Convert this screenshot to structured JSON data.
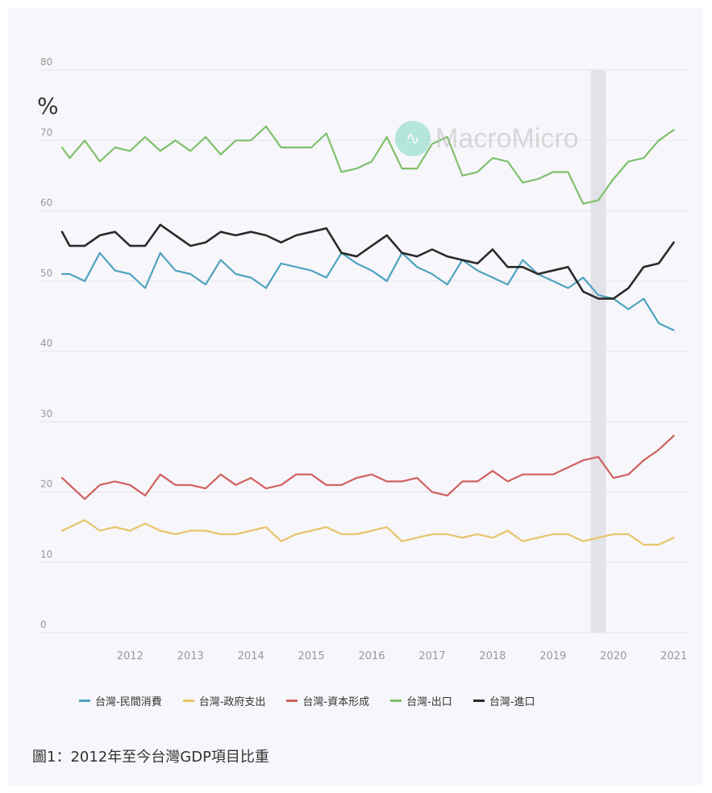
{
  "unit": "%",
  "watermark": "MacroMicro",
  "caption": "圖1：2012年至今台灣GDP項目比重",
  "chart_data": {
    "type": "line",
    "ylim": [
      0,
      80
    ],
    "yticks": [
      0,
      10,
      20,
      30,
      40,
      50,
      60,
      70,
      80
    ],
    "xlim": [
      2011.375,
      2021.625
    ],
    "xticks": [
      "2012",
      "2013",
      "2014",
      "2015",
      "2016",
      "2017",
      "2018",
      "2019",
      "2020",
      "2021"
    ],
    "shaded_period": [
      2020.125,
      2020.375
    ],
    "grid": true,
    "legend_position": "bottom",
    "series": [
      {
        "name": "台灣-民間消費",
        "color": "#4ea3bf",
        "x": [
          2011.375,
          2011.5,
          2011.75,
          2012.0,
          2012.25,
          2012.5,
          2012.75,
          2013.0,
          2013.25,
          2013.5,
          2013.75,
          2014.0,
          2014.25,
          2014.5,
          2014.75,
          2015.0,
          2015.25,
          2015.5,
          2015.75,
          2016.0,
          2016.25,
          2016.5,
          2016.75,
          2017.0,
          2017.25,
          2017.5,
          2017.75,
          2018.0,
          2018.25,
          2018.5,
          2018.75,
          2019.0,
          2019.25,
          2019.5,
          2019.75,
          2020.0,
          2020.25,
          2020.5,
          2020.75,
          2021.0,
          2021.25,
          2021.5
        ],
        "y": [
          51,
          51,
          50,
          54,
          51.5,
          51,
          49,
          54,
          51.5,
          51,
          49.5,
          53,
          51,
          50.5,
          49,
          52.5,
          52,
          51.5,
          50.5,
          54,
          52.5,
          51.5,
          50,
          54,
          52,
          51,
          49.5,
          53,
          51.5,
          50.5,
          49.5,
          53,
          51,
          50,
          49,
          50.5,
          48,
          47.5,
          46,
          47.5,
          44,
          43
        ]
      },
      {
        "name": "台灣-政府支出",
        "color": "#e8c46a",
        "x": [
          2011.375,
          2011.5,
          2011.75,
          2012.0,
          2012.25,
          2012.5,
          2012.75,
          2013.0,
          2013.25,
          2013.5,
          2013.75,
          2014.0,
          2014.25,
          2014.5,
          2014.75,
          2015.0,
          2015.25,
          2015.5,
          2015.75,
          2016.0,
          2016.25,
          2016.5,
          2016.75,
          2017.0,
          2017.25,
          2017.5,
          2017.75,
          2018.0,
          2018.25,
          2018.5,
          2018.75,
          2019.0,
          2019.25,
          2019.5,
          2019.75,
          2020.0,
          2020.25,
          2020.5,
          2020.75,
          2021.0,
          2021.25,
          2021.5
        ],
        "y": [
          14.5,
          15,
          16,
          14.5,
          15,
          14.5,
          15.5,
          14.5,
          14,
          14.5,
          14.5,
          14,
          14,
          14.5,
          15,
          13,
          14,
          14.5,
          15,
          14,
          14,
          14.5,
          15,
          13,
          13.5,
          14,
          14,
          13.5,
          14,
          13.5,
          14.5,
          13,
          13.5,
          14,
          14,
          13,
          13.5,
          14,
          14,
          12.5,
          12.5,
          13.5
        ]
      },
      {
        "name": "台灣-資本形成",
        "color": "#d0605f",
        "x": [
          2011.375,
          2011.5,
          2011.75,
          2012.0,
          2012.25,
          2012.5,
          2012.75,
          2013.0,
          2013.25,
          2013.5,
          2013.75,
          2014.0,
          2014.25,
          2014.5,
          2014.75,
          2015.0,
          2015.25,
          2015.5,
          2015.75,
          2016.0,
          2016.25,
          2016.5,
          2016.75,
          2017.0,
          2017.25,
          2017.5,
          2017.75,
          2018.0,
          2018.25,
          2018.5,
          2018.75,
          2019.0,
          2019.25,
          2019.5,
          2019.75,
          2020.0,
          2020.25,
          2020.5,
          2020.75,
          2021.0,
          2021.25,
          2021.5
        ],
        "y": [
          22,
          21,
          19,
          21,
          21.5,
          21,
          19.5,
          22.5,
          21,
          21,
          20.5,
          22.5,
          21,
          22,
          20.5,
          21,
          22.5,
          22.5,
          21,
          21,
          22,
          22.5,
          21.5,
          21.5,
          22,
          20,
          19.5,
          21.5,
          21.5,
          23,
          21.5,
          22.5,
          22.5,
          22.5,
          23.5,
          24.5,
          25,
          22,
          22.5,
          24.5,
          26,
          28
        ]
      },
      {
        "name": "台灣-出口",
        "color": "#7fc06c",
        "x": [
          2011.375,
          2011.5,
          2011.75,
          2012.0,
          2012.25,
          2012.5,
          2012.75,
          2013.0,
          2013.25,
          2013.5,
          2013.75,
          2014.0,
          2014.25,
          2014.5,
          2014.75,
          2015.0,
          2015.25,
          2015.5,
          2015.75,
          2016.0,
          2016.25,
          2016.5,
          2016.75,
          2017.0,
          2017.25,
          2017.5,
          2017.75,
          2018.0,
          2018.25,
          2018.5,
          2018.75,
          2019.0,
          2019.25,
          2019.5,
          2019.75,
          2020.0,
          2020.25,
          2020.5,
          2020.75,
          2021.0,
          2021.25,
          2021.5
        ],
        "y": [
          69,
          67.5,
          70,
          67,
          69,
          68.5,
          70.5,
          68.5,
          70,
          68.5,
          70.5,
          68,
          70,
          70,
          72,
          69,
          69,
          69,
          71,
          65.5,
          66,
          67,
          70.5,
          66,
          66,
          69.5,
          70.5,
          65,
          65.5,
          67.5,
          67,
          64,
          64.5,
          65.5,
          65.5,
          61,
          61.5,
          64.5,
          67,
          67.5,
          70,
          71.5
        ]
      },
      {
        "name": "台灣-進口",
        "color": "#2b2b2b",
        "x": [
          2011.375,
          2011.5,
          2011.75,
          2012.0,
          2012.25,
          2012.5,
          2012.75,
          2013.0,
          2013.25,
          2013.5,
          2013.75,
          2014.0,
          2014.25,
          2014.5,
          2014.75,
          2015.0,
          2015.25,
          2015.5,
          2015.75,
          2016.0,
          2016.25,
          2016.5,
          2016.75,
          2017.0,
          2017.25,
          2017.5,
          2017.75,
          2018.0,
          2018.25,
          2018.5,
          2018.75,
          2019.0,
          2019.25,
          2019.5,
          2019.75,
          2020.0,
          2020.25,
          2020.5,
          2020.75,
          2021.0,
          2021.25,
          2021.5
        ],
        "y": [
          57,
          55,
          55,
          56.5,
          57,
          55,
          55,
          58,
          56.5,
          55,
          55.5,
          57,
          56.5,
          57,
          56.5,
          55.5,
          56.5,
          57,
          57.5,
          54,
          53.5,
          55,
          56.5,
          54,
          53.5,
          54.5,
          53.5,
          53,
          52.5,
          54.5,
          52,
          52,
          51,
          51.5,
          52,
          48.5,
          47.5,
          47.5,
          49,
          52,
          52.5,
          55.5
        ]
      }
    ]
  }
}
